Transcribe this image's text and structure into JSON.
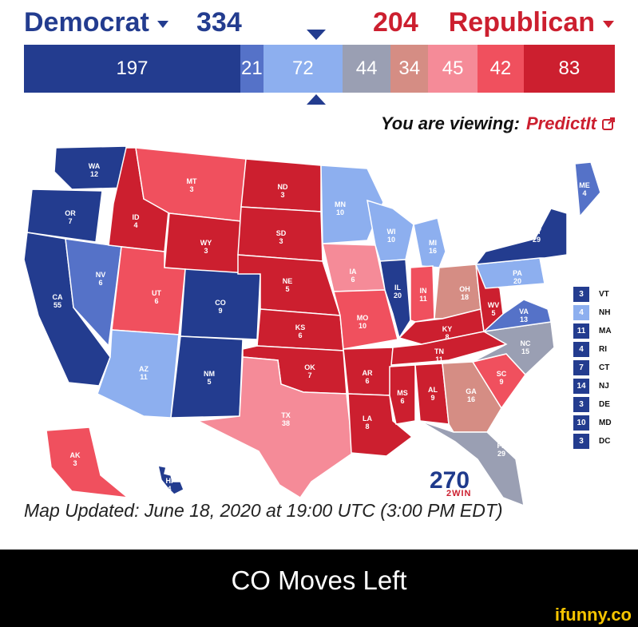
{
  "header": {
    "dem_label": "Democrat",
    "dem_ev": "334",
    "rep_ev": "204",
    "rep_label": "Republican",
    "viewing_label": "You are viewing:",
    "viewing_source": "PredictIt"
  },
  "bar_segments": [
    {
      "value": 197,
      "label": "197",
      "color": "#233c8f"
    },
    {
      "value": 21,
      "label": "21",
      "color": "#5572c8"
    },
    {
      "value": 72,
      "label": "72",
      "color": "#8dafef"
    },
    {
      "value": 44,
      "label": "44",
      "color": "#9a9fb3"
    },
    {
      "value": 34,
      "label": "34",
      "color": "#d58d84"
    },
    {
      "value": 45,
      "label": "45",
      "color": "#f58b98"
    },
    {
      "value": 42,
      "label": "42",
      "color": "#f0505e"
    },
    {
      "value": 83,
      "label": "83",
      "color": "#cc1f2f"
    }
  ],
  "colors": {
    "safe_d": "#233c8f",
    "likely_d": "#5572c8",
    "lean_d": "#8dafef",
    "tossup": "#9a9fb3",
    "tilt_r": "#d58d84",
    "lean_r": "#f58b98",
    "likely_r": "#f0505e",
    "safe_r": "#cc1f2f"
  },
  "map": {
    "states": [
      {
        "abbr": "WA",
        "ev": "12",
        "rating": "safe_d"
      },
      {
        "abbr": "OR",
        "ev": "7",
        "rating": "safe_d"
      },
      {
        "abbr": "CA",
        "ev": "55",
        "rating": "safe_d"
      },
      {
        "abbr": "NV",
        "ev": "6",
        "rating": "likely_d"
      },
      {
        "abbr": "ID",
        "ev": "4",
        "rating": "safe_r"
      },
      {
        "abbr": "MT",
        "ev": "3",
        "rating": "likely_r"
      },
      {
        "abbr": "WY",
        "ev": "3",
        "rating": "safe_r"
      },
      {
        "abbr": "UT",
        "ev": "6",
        "rating": "likely_r"
      },
      {
        "abbr": "AZ",
        "ev": "11",
        "rating": "lean_d"
      },
      {
        "abbr": "CO",
        "ev": "9",
        "rating": "safe_d"
      },
      {
        "abbr": "NM",
        "ev": "5",
        "rating": "safe_d"
      },
      {
        "abbr": "ND",
        "ev": "3",
        "rating": "safe_r"
      },
      {
        "abbr": "SD",
        "ev": "3",
        "rating": "safe_r"
      },
      {
        "abbr": "NE",
        "ev": "5",
        "rating": "safe_r"
      },
      {
        "abbr": "KS",
        "ev": "6",
        "rating": "safe_r"
      },
      {
        "abbr": "OK",
        "ev": "7",
        "rating": "safe_r"
      },
      {
        "abbr": "TX",
        "ev": "38",
        "rating": "lean_r"
      },
      {
        "abbr": "MN",
        "ev": "10",
        "rating": "lean_d"
      },
      {
        "abbr": "IA",
        "ev": "6",
        "rating": "lean_r"
      },
      {
        "abbr": "MO",
        "ev": "10",
        "rating": "likely_r"
      },
      {
        "abbr": "AR",
        "ev": "6",
        "rating": "safe_r"
      },
      {
        "abbr": "LA",
        "ev": "8",
        "rating": "safe_r"
      },
      {
        "abbr": "WI",
        "ev": "10",
        "rating": "lean_d"
      },
      {
        "abbr": "IL",
        "ev": "20",
        "rating": "safe_d"
      },
      {
        "abbr": "MI",
        "ev": "16",
        "rating": "lean_d"
      },
      {
        "abbr": "IN",
        "ev": "11",
        "rating": "likely_r"
      },
      {
        "abbr": "OH",
        "ev": "18",
        "rating": "tilt_r"
      },
      {
        "abbr": "KY",
        "ev": "8",
        "rating": "safe_r"
      },
      {
        "abbr": "TN",
        "ev": "11",
        "rating": "safe_r"
      },
      {
        "abbr": "MS",
        "ev": "6",
        "rating": "safe_r"
      },
      {
        "abbr": "AL",
        "ev": "9",
        "rating": "safe_r"
      },
      {
        "abbr": "GA",
        "ev": "16",
        "rating": "tilt_r"
      },
      {
        "abbr": "FL",
        "ev": "29",
        "rating": "tossup"
      },
      {
        "abbr": "SC",
        "ev": "9",
        "rating": "likely_r"
      },
      {
        "abbr": "NC",
        "ev": "15",
        "rating": "tossup"
      },
      {
        "abbr": "VA",
        "ev": "13",
        "rating": "likely_d"
      },
      {
        "abbr": "WV",
        "ev": "5",
        "rating": "safe_r"
      },
      {
        "abbr": "PA",
        "ev": "20",
        "rating": "lean_d"
      },
      {
        "abbr": "NY",
        "ev": "29",
        "rating": "safe_d"
      },
      {
        "abbr": "ME",
        "ev": "4",
        "rating": "likely_d"
      },
      {
        "abbr": "AK",
        "ev": "3",
        "rating": "likely_r"
      },
      {
        "abbr": "HI",
        "ev": "4",
        "rating": "safe_d"
      }
    ]
  },
  "legend": [
    {
      "ev": "3",
      "abbr": "VT",
      "rating": "safe_d"
    },
    {
      "ev": "4",
      "abbr": "NH",
      "rating": "lean_d"
    },
    {
      "ev": "11",
      "abbr": "MA",
      "rating": "safe_d"
    },
    {
      "ev": "4",
      "abbr": "RI",
      "rating": "safe_d"
    },
    {
      "ev": "7",
      "abbr": "CT",
      "rating": "safe_d"
    },
    {
      "ev": "14",
      "abbr": "NJ",
      "rating": "safe_d"
    },
    {
      "ev": "3",
      "abbr": "DE",
      "rating": "safe_d"
    },
    {
      "ev": "10",
      "abbr": "MD",
      "rating": "safe_d"
    },
    {
      "ev": "3",
      "abbr": "DC",
      "rating": "safe_d"
    }
  ],
  "footer": {
    "updated_text": "Map Updated: June 18, 2020 at 19:00 UTC (3:00 PM EDT)",
    "logo_number": "270",
    "logo_sub": "2WIN"
  },
  "caption": "CO Moves Left",
  "watermark": "ifunny.co"
}
